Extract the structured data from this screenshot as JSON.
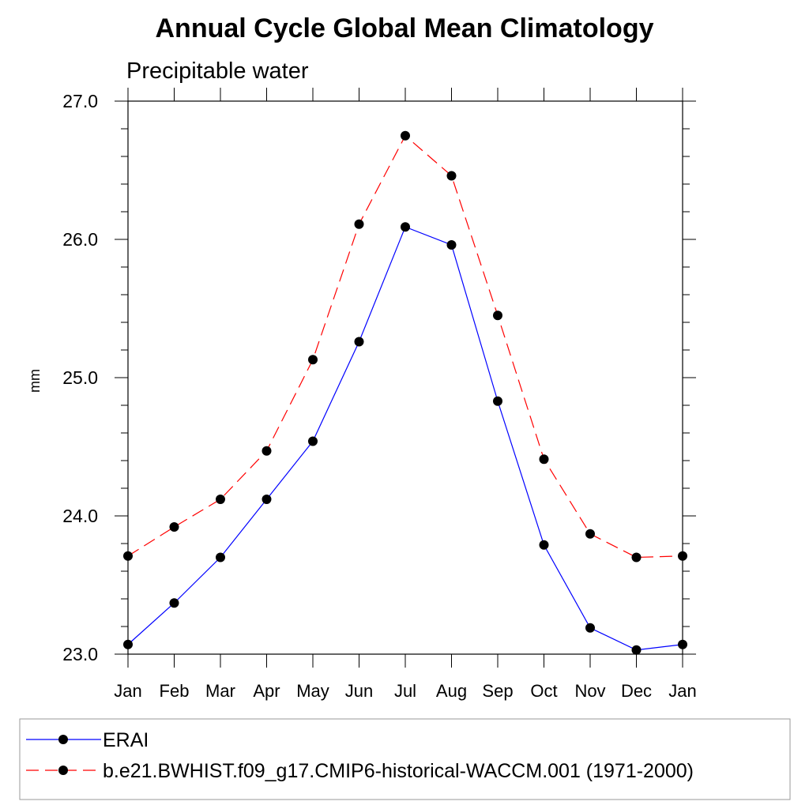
{
  "chart_data": {
    "type": "line",
    "title": "Annual Cycle Global Mean Climatology",
    "subtitle": "Precipitable water",
    "xlabel": "",
    "ylabel": "mm",
    "categories": [
      "Jan",
      "Feb",
      "Mar",
      "Apr",
      "May",
      "Jun",
      "Jul",
      "Aug",
      "Sep",
      "Oct",
      "Nov",
      "Dec",
      "Jan"
    ],
    "ylim": [
      23.0,
      27.0
    ],
    "y_ticks": [
      "23.0",
      "24.0",
      "25.0",
      "26.0",
      "27.0"
    ],
    "grid": false,
    "legend_position": "bottom",
    "series": [
      {
        "name": "ERAI",
        "color": "#0000ff",
        "line_style": "solid",
        "marker": "filled-circle",
        "values": [
          23.07,
          23.37,
          23.7,
          24.12,
          24.54,
          25.26,
          26.09,
          25.96,
          24.83,
          23.79,
          23.19,
          23.03,
          23.07
        ]
      },
      {
        "name": "b.e21.BWHIST.f09_g17.CMIP6-historical-WACCM.001 (1971-2000)",
        "color": "#ff0000",
        "line_style": "dashed",
        "marker": "filled-circle",
        "values": [
          23.71,
          23.92,
          24.12,
          24.47,
          25.13,
          26.11,
          26.75,
          26.46,
          25.45,
          24.41,
          23.87,
          23.7,
          23.71
        ]
      }
    ]
  }
}
